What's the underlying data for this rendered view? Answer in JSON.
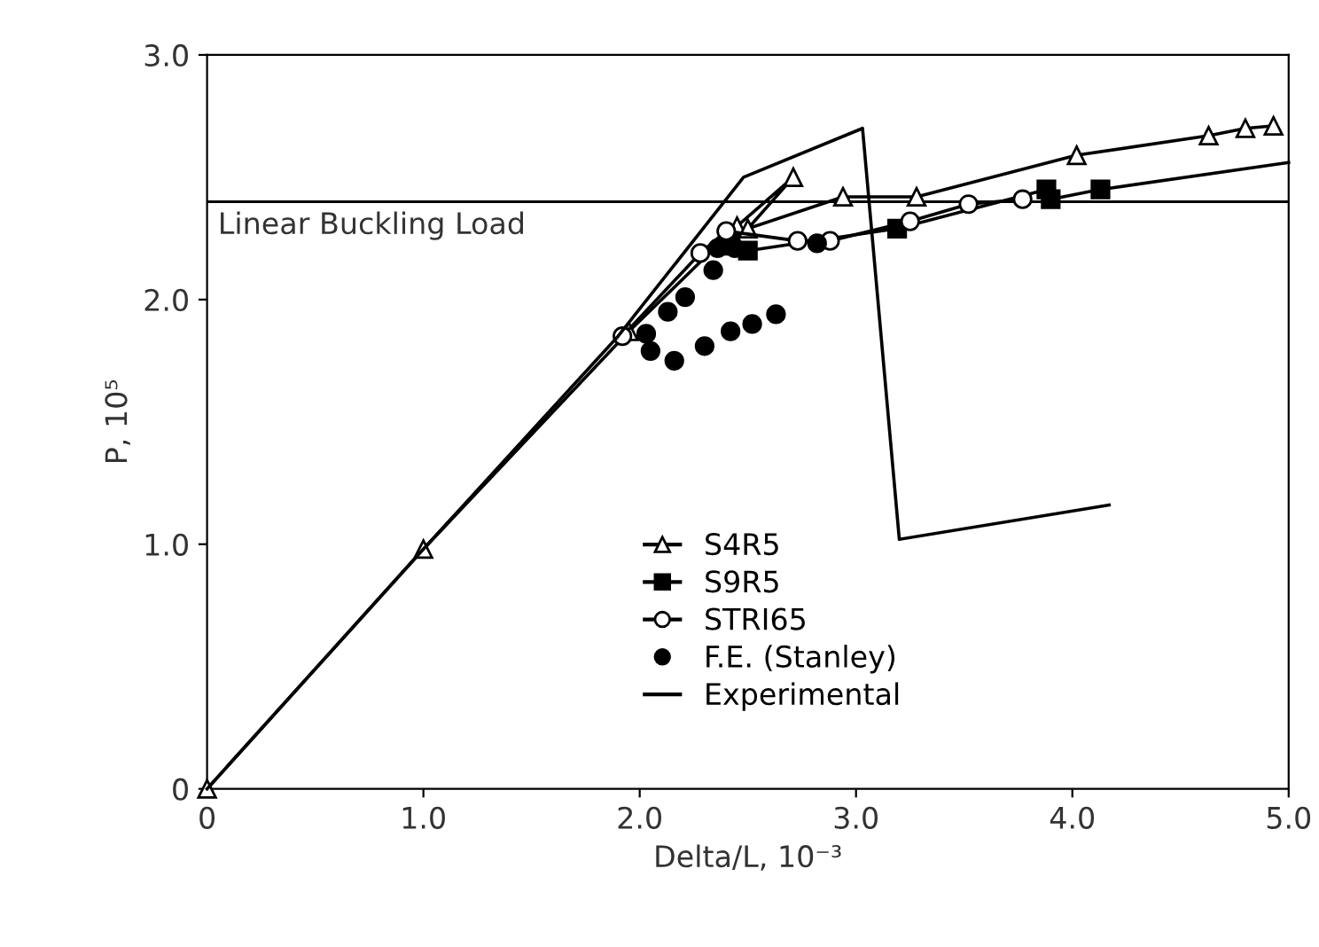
{
  "chart_data": {
    "type": "line",
    "xlabel": "Delta/L, 10⁻³",
    "ylabel": "P, 10⁵",
    "xlim": [
      0,
      5
    ],
    "ylim": [
      0,
      3
    ],
    "xticks": [
      0,
      {
        "value": 1,
        "label": "1.0"
      },
      {
        "value": 2,
        "label": "2.0"
      },
      {
        "value": 3,
        "label": "3.0"
      },
      {
        "value": 4,
        "label": "4.0"
      },
      {
        "value": 5,
        "label": "5.0"
      }
    ],
    "yticks": [
      0,
      {
        "value": 1,
        "label": "1.0"
      },
      {
        "value": 2,
        "label": "2.0"
      },
      {
        "value": 3,
        "label": "3.0"
      }
    ],
    "grid": false,
    "legend": "bottom",
    "ref_lines": [
      {
        "axis": "y",
        "value": 2.4,
        "label": "Linear Buckling Load",
        "color": "#000000",
        "line_style": "solid"
      }
    ],
    "series": [
      {
        "name": "S4R5",
        "marker": "triangle",
        "color": "#000000",
        "x": [
          0,
          1.0,
          1.95,
          2.45,
          2.71,
          2.5,
          2.94,
          3.28,
          4.02,
          4.63,
          4.8,
          4.93
        ],
        "values": [
          0,
          0.98,
          1.87,
          2.3,
          2.5,
          2.29,
          2.42,
          2.42,
          2.59,
          2.67,
          2.7,
          2.71
        ]
      },
      {
        "name": "S9R5",
        "marker": "square",
        "color": "#000000",
        "x": [
          2.42,
          2.5,
          3.19,
          3.88,
          3.9,
          4.13
        ],
        "values": [
          2.22,
          2.2,
          2.29,
          2.45,
          2.41,
          2.45
        ]
      },
      {
        "name": "STRI65",
        "marker": "circle",
        "color": "#000000",
        "x": [
          1.92,
          2.28,
          2.4,
          2.73,
          2.88,
          3.25,
          3.52,
          3.77
        ],
        "values": [
          1.85,
          2.19,
          2.28,
          2.24,
          2.24,
          2.32,
          2.39,
          2.41
        ]
      },
      {
        "marker": "none",
        "color": "#000000",
        "x": [
          4.13,
          5.0
        ],
        "values": [
          2.45,
          2.56
        ]
      },
      {
        "name": "F.E. (Stanley)",
        "type": "scatter",
        "marker": "circle",
        "color": "#000000",
        "x": [
          2.44,
          2.36,
          2.34,
          2.21,
          2.13,
          2.03,
          2.05,
          2.16,
          2.3,
          2.42,
          2.52,
          2.63,
          2.82
        ],
        "values": [
          2.21,
          2.21,
          2.12,
          2.01,
          1.95,
          1.86,
          1.79,
          1.75,
          1.81,
          1.87,
          1.9,
          1.94,
          2.23
        ]
      },
      {
        "name": "Experimental",
        "marker": "none",
        "color": "#000000",
        "x": [
          0,
          1.0,
          1.9,
          2.48,
          3.03,
          3.2,
          4.17
        ],
        "values": [
          0,
          0.98,
          1.85,
          2.5,
          2.7,
          1.02,
          1.16
        ]
      }
    ]
  }
}
